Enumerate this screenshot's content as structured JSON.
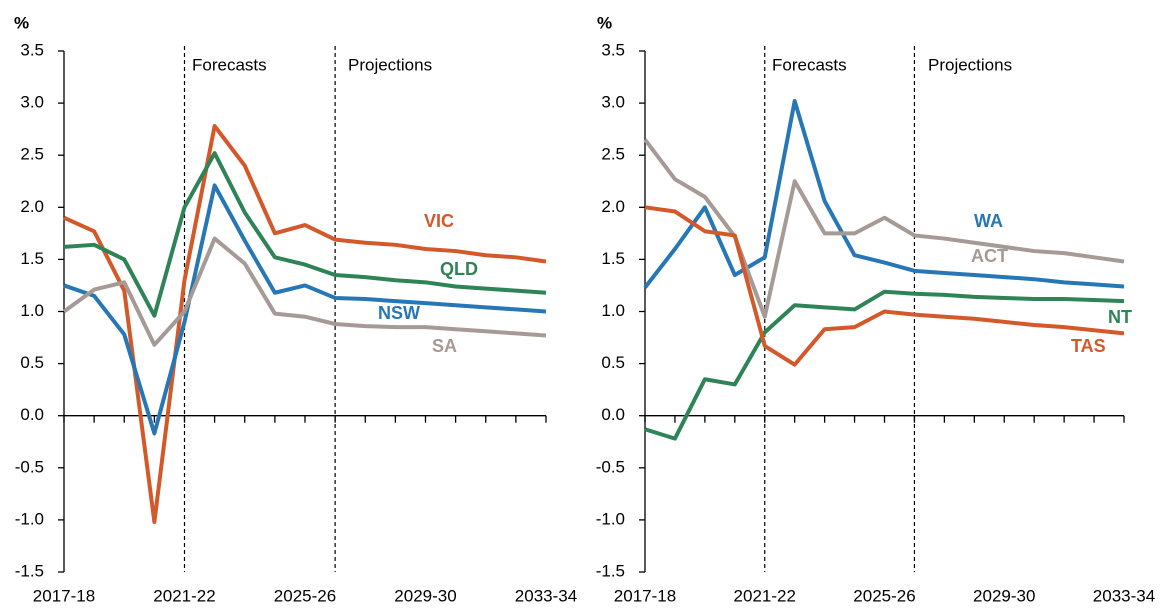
{
  "chart_data": [
    {
      "type": "line",
      "unit": "%",
      "categories": [
        "2017-18",
        null,
        null,
        null,
        "2021-22",
        null,
        null,
        null,
        "2025-26",
        null,
        null,
        null,
        "2029-30",
        null,
        null,
        null,
        "2033-34"
      ],
      "annotations": [
        "Forecasts",
        "Projections"
      ],
      "ylim": [
        -1.5,
        3.5
      ],
      "yticks": [
        -1.5,
        {
          "value": -1,
          "label": "-1.0"
        },
        -0.5,
        {
          "value": 0,
          "label": "0.0"
        },
        0.5,
        {
          "value": 1,
          "label": "1.0"
        },
        1.5,
        {
          "value": 2,
          "label": "2.0"
        },
        2.5,
        {
          "value": 3,
          "label": "3.0"
        },
        3.5
      ],
      "series": [
        {
          "name": "VIC",
          "color": "#d4592a",
          "values": [
            1.9,
            1.77,
            1.2,
            -1.02,
            1.3,
            2.78,
            2.4,
            1.75,
            1.83,
            1.69,
            1.66,
            1.64,
            1.6,
            1.58,
            1.54,
            1.52,
            1.48
          ]
        },
        {
          "name": "QLD",
          "color": "#2e8456",
          "values": [
            1.62,
            1.64,
            1.5,
            0.96,
            2.0,
            2.52,
            1.95,
            1.52,
            1.45,
            1.35,
            1.33,
            1.3,
            1.28,
            1.24,
            1.22,
            1.2,
            1.18
          ]
        },
        {
          "name": "NSW",
          "color": "#2777b6",
          "values": [
            1.25,
            1.15,
            0.78,
            -0.17,
            0.9,
            2.21,
            1.68,
            1.18,
            1.25,
            1.13,
            1.12,
            1.1,
            1.08,
            1.06,
            1.04,
            1.02,
            1.0
          ]
        },
        {
          "name": "SA",
          "color": "#a59a95",
          "values": [
            1.0,
            1.21,
            1.28,
            0.68,
            1.0,
            1.7,
            1.46,
            0.98,
            0.95,
            0.88,
            0.86,
            0.85,
            0.85,
            0.83,
            0.81,
            0.79,
            0.77
          ]
        }
      ]
    },
    {
      "type": "line",
      "unit": "%",
      "categories": [
        "2017-18",
        null,
        null,
        null,
        "2021-22",
        null,
        null,
        null,
        "2025-26",
        null,
        null,
        null,
        "2029-30",
        null,
        null,
        null,
        "2033-34"
      ],
      "annotations": [
        "Forecasts",
        "Projections"
      ],
      "ylim": [
        -1.5,
        3.5
      ],
      "yticks": [
        -1.5,
        {
          "value": -1,
          "label": "-1.0"
        },
        -0.5,
        {
          "value": 0,
          "label": "0.0"
        },
        0.5,
        {
          "value": 1,
          "label": "1.0"
        },
        1.5,
        {
          "value": 2,
          "label": "2.0"
        },
        2.5,
        {
          "value": 3,
          "label": "3.0"
        },
        3.5
      ],
      "series": [
        {
          "name": "WA",
          "color": "#2777b6",
          "values": [
            1.23,
            1.6,
            2.0,
            1.35,
            1.52,
            3.02,
            2.06,
            1.54,
            1.47,
            1.39,
            1.37,
            1.35,
            1.33,
            1.31,
            1.28,
            1.26,
            1.24
          ]
        },
        {
          "name": "ACT",
          "color": "#a59a95",
          "values": [
            2.65,
            2.27,
            2.1,
            1.72,
            0.95,
            2.25,
            1.75,
            1.75,
            1.9,
            1.73,
            1.7,
            1.66,
            1.62,
            1.58,
            1.56,
            1.52,
            1.48
          ]
        },
        {
          "name": "NT",
          "color": "#2e8456",
          "values": [
            -0.13,
            -0.22,
            0.35,
            0.3,
            0.8,
            1.06,
            1.04,
            1.02,
            1.19,
            1.17,
            1.16,
            1.14,
            1.13,
            1.12,
            1.12,
            1.11,
            1.1
          ]
        },
        {
          "name": "TAS",
          "color": "#d4592a",
          "values": [
            2.0,
            1.96,
            1.77,
            1.73,
            0.67,
            0.49,
            0.83,
            0.85,
            1.0,
            0.97,
            0.95,
            0.93,
            0.9,
            0.87,
            0.85,
            0.82,
            0.79
          ]
        }
      ]
    }
  ]
}
